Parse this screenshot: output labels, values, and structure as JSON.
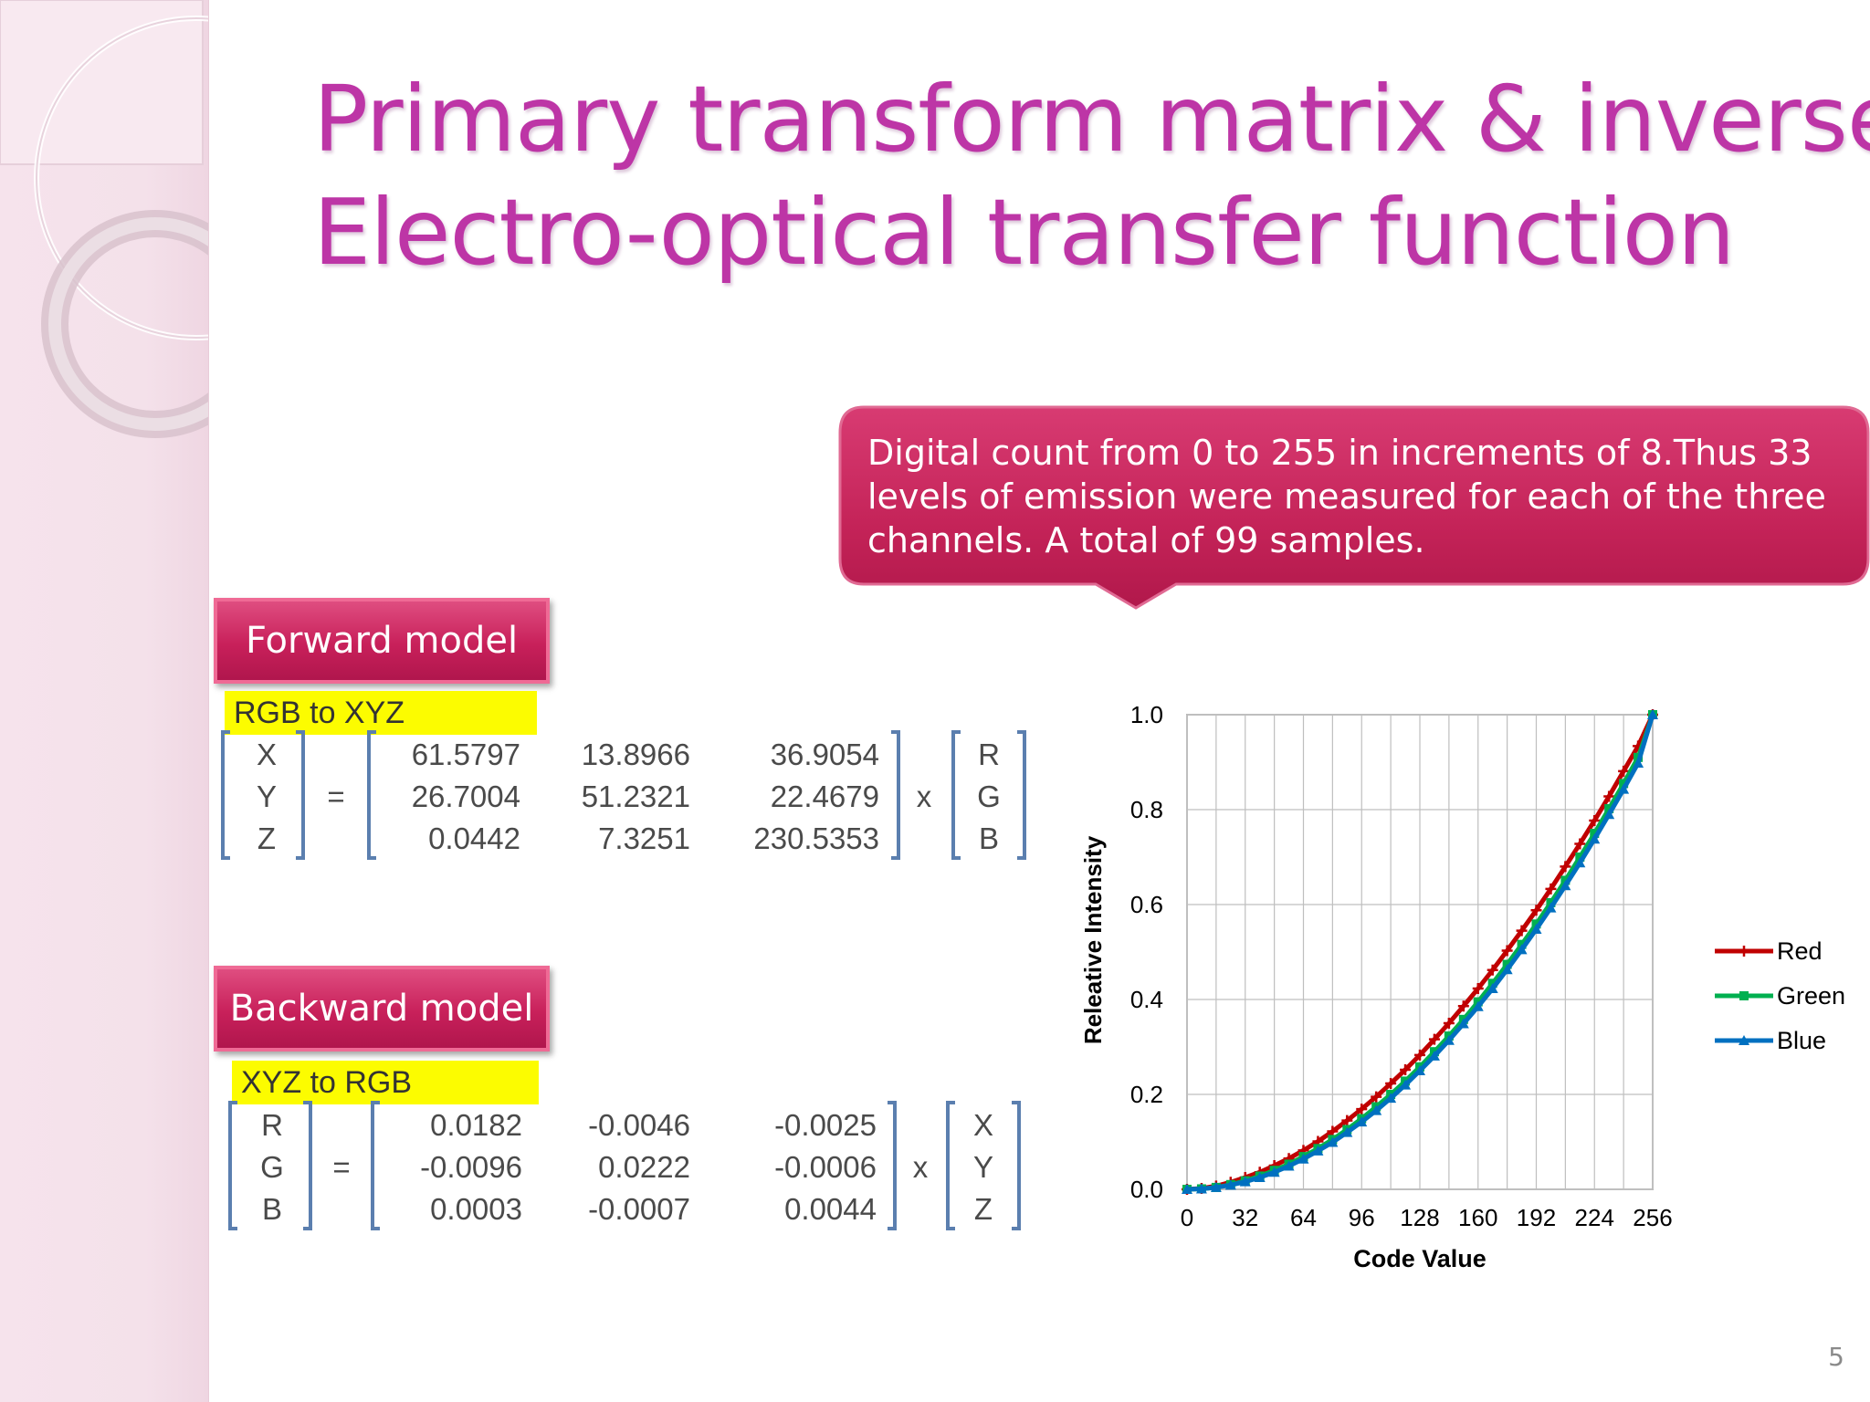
{
  "slide": {
    "title_line1": "Primary transform matrix & inverse",
    "title_line2": "Electro-optical transfer function",
    "page_number": "5",
    "title_color": "#bd35a6",
    "accent_color": "#c8205a"
  },
  "callout": {
    "lines": [
      "Digital count from 0 to 255 in increments of 8.Thus 33",
      "levels of emission were measured for each of the three",
      "channels. A total of 99 samples."
    ]
  },
  "forward": {
    "heading": "Forward model",
    "label": "RGB to XYZ",
    "lhs": [
      "X",
      "Y",
      "Z"
    ],
    "matrix": [
      [
        "61.5797",
        "13.8966",
        "36.9054"
      ],
      [
        "26.7004",
        "51.2321",
        "22.4679"
      ],
      [
        "0.0442",
        "7.3251",
        "230.5353"
      ]
    ],
    "rhs": [
      "R",
      "G",
      "B"
    ],
    "equals": "=",
    "times": "x"
  },
  "backward": {
    "heading": "Backward model",
    "label": "XYZ to RGB",
    "lhs": [
      "R",
      "G",
      "B"
    ],
    "matrix": [
      [
        "0.0182",
        "-0.0046",
        "-0.0025"
      ],
      [
        "-0.0096",
        "0.0222",
        "-0.0006"
      ],
      [
        "0.0003",
        "-0.0007",
        "0.0044"
      ]
    ],
    "rhs": [
      "X",
      "Y",
      "Z"
    ],
    "equals": "=",
    "times": "x"
  },
  "chart_data": {
    "type": "line",
    "title": "",
    "xlabel": "Code Value",
    "ylabel": "Releative  Intensity",
    "xlim": [
      0,
      256
    ],
    "ylim": [
      0,
      1.0
    ],
    "xticks": [
      0,
      32,
      64,
      96,
      128,
      160,
      192,
      224,
      256
    ],
    "yticks": [
      0.0,
      0.2,
      0.4,
      0.6,
      0.8,
      1.0
    ],
    "ytick_labels": [
      "0.0",
      "0.2",
      "0.4",
      "0.6",
      "0.8",
      "1.0"
    ],
    "grid": true,
    "legend_position": "right",
    "x": [
      0,
      8,
      16,
      24,
      32,
      40,
      48,
      56,
      64,
      72,
      80,
      88,
      96,
      104,
      112,
      120,
      128,
      136,
      144,
      152,
      160,
      168,
      176,
      184,
      192,
      200,
      208,
      216,
      224,
      232,
      240,
      248,
      256
    ],
    "series": [
      {
        "name": "Red",
        "color": "#c00000",
        "marker": "plus",
        "values": [
          0.0,
          0.002,
          0.007,
          0.015,
          0.025,
          0.036,
          0.05,
          0.065,
          0.082,
          0.101,
          0.122,
          0.145,
          0.169,
          0.195,
          0.223,
          0.252,
          0.283,
          0.316,
          0.35,
          0.386,
          0.423,
          0.462,
          0.503,
          0.545,
          0.588,
          0.633,
          0.68,
          0.728,
          0.777,
          0.828,
          0.881,
          0.934,
          1.0
        ]
      },
      {
        "name": "Green",
        "color": "#00b050",
        "marker": "square",
        "values": [
          0.0,
          0.001,
          0.004,
          0.01,
          0.018,
          0.028,
          0.04,
          0.053,
          0.069,
          0.086,
          0.105,
          0.126,
          0.149,
          0.174,
          0.2,
          0.228,
          0.258,
          0.29,
          0.323,
          0.358,
          0.395,
          0.434,
          0.474,
          0.516,
          0.559,
          0.604,
          0.651,
          0.7,
          0.75,
          0.802,
          0.855,
          0.91,
          1.0
        ]
      },
      {
        "name": "Blue",
        "color": "#0070c0",
        "marker": "triangle",
        "values": [
          0.0,
          0.001,
          0.004,
          0.009,
          0.016,
          0.025,
          0.036,
          0.049,
          0.064,
          0.081,
          0.099,
          0.12,
          0.142,
          0.166,
          0.192,
          0.22,
          0.25,
          0.281,
          0.314,
          0.349,
          0.385,
          0.423,
          0.463,
          0.505,
          0.548,
          0.593,
          0.64,
          0.688,
          0.738,
          0.79,
          0.843,
          0.898,
          1.0
        ]
      }
    ]
  }
}
